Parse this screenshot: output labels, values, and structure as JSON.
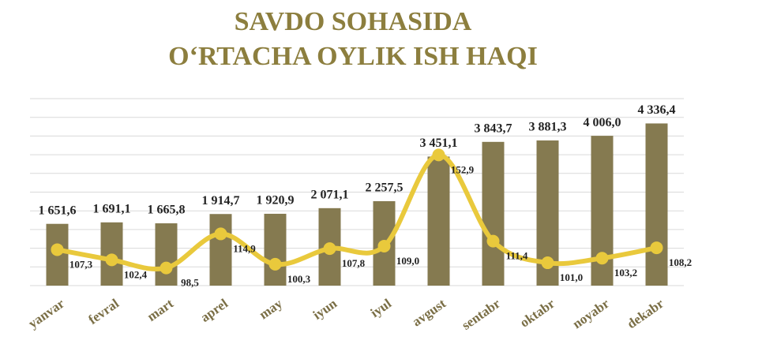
{
  "chart_data": {
    "type": "bar-line",
    "title": [
      "SAVDO SOHASIDA",
      "O‘RTACHA OYLIK ISH HAQI"
    ],
    "categories": [
      "yanvar",
      "fevral",
      "mart",
      "aprel",
      "may",
      "iyun",
      "iyul",
      "avgust",
      "sentabr",
      "oktabr",
      "noyabr",
      "dekabr"
    ],
    "series": [
      {
        "type": "bar",
        "color": "#857a50",
        "values": [
          1651.6,
          1691.1,
          1665.8,
          1914.7,
          1920.9,
          2071.1,
          2257.5,
          3451.1,
          3843.7,
          3881.3,
          4006.0,
          4336.4
        ],
        "value_labels": [
          "1 651,6",
          "1 691,1",
          "1 665,8",
          "1 914,7",
          "1 920,9",
          "2 071,1",
          "2 257,5",
          "3 451,1",
          "3 843,7",
          "3 881,3",
          "4 006,0",
          "4 336,4"
        ]
      },
      {
        "type": "line",
        "axis": "y2",
        "color": "#e9c93c",
        "values": [
          107.3,
          102.4,
          98.5,
          114.9,
          100.3,
          107.8,
          109.0,
          152.9,
          111.4,
          101.0,
          103.2,
          108.2
        ],
        "value_labels": [
          "107,3",
          "102,4",
          "98,5",
          "114,9",
          "100,3",
          "107,8",
          "109,0",
          "152,9",
          "111,4",
          "101,0",
          "103,2",
          "108,2"
        ]
      }
    ],
    "ylim": [
      0,
      5000
    ],
    "yticks": [
      0,
      500,
      1000,
      1500,
      2000,
      2500,
      3000,
      3500,
      4000,
      4500,
      5000
    ],
    "y2lim": [
      90,
      180
    ],
    "grid": true
  }
}
